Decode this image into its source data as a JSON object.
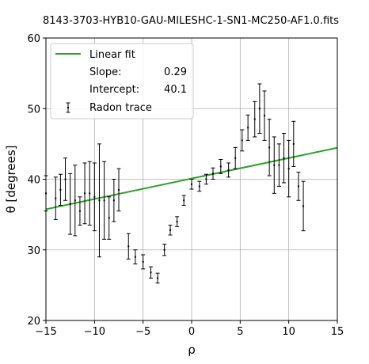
{
  "chart_data": {
    "type": "scatter",
    "title": "8143-3703-HYB10-GAU-MILESHC-1-SN1-MC250-AF1.0.fits",
    "xlabel": "ρ",
    "ylabel": "θ [degrees]",
    "xlim": [
      -15,
      15
    ],
    "ylim": [
      20,
      60
    ],
    "xticks": [
      -15,
      -10,
      -5,
      0,
      5,
      10,
      15
    ],
    "yticks": [
      20,
      30,
      40,
      50,
      60
    ],
    "xtick_labels": [
      "−15",
      "−10",
      "−5",
      "0",
      "5",
      "10",
      "15"
    ],
    "ytick_labels": [
      "20",
      "30",
      "40",
      "50",
      "60"
    ],
    "grid": true,
    "legend_position": "upper-left",
    "legend": {
      "fit_label": "Linear fit",
      "slope_label": "Slope:",
      "slope_value": "0.29",
      "intercept_label": "Intercept:",
      "intercept_value": "40.1",
      "trace_label": "Radon trace"
    },
    "fit": {
      "name": "Linear fit",
      "slope": 0.29,
      "intercept": 40.1,
      "color": "#2ca02c"
    },
    "series": [
      {
        "name": "Radon trace",
        "color": "#000000",
        "points": [
          {
            "x": -15,
            "y": 38.0,
            "err": 2.5
          },
          {
            "x": -14,
            "y": 37.3,
            "err": 3.0
          },
          {
            "x": -13.5,
            "y": 38.5,
            "err": 2.2
          },
          {
            "x": -13,
            "y": 40.0,
            "err": 3.0
          },
          {
            "x": -12.5,
            "y": 36.5,
            "err": 4.3
          },
          {
            "x": -12,
            "y": 37.0,
            "err": 5.0
          },
          {
            "x": -11.5,
            "y": 35.5,
            "err": 2.0
          },
          {
            "x": -11,
            "y": 38.0,
            "err": 4.3
          },
          {
            "x": -10.5,
            "y": 38.0,
            "err": 4.5
          },
          {
            "x": -10,
            "y": 37.5,
            "err": 4.8
          },
          {
            "x": -9.5,
            "y": 37.0,
            "err": 8.0
          },
          {
            "x": -9,
            "y": 37.0,
            "err": 5.5
          },
          {
            "x": -8.5,
            "y": 34.5,
            "err": 3.0
          },
          {
            "x": -8,
            "y": 37.0,
            "err": 3.0
          },
          {
            "x": -7.5,
            "y": 38.5,
            "err": 3.0
          },
          {
            "x": -6.5,
            "y": 30.5,
            "err": 1.8
          },
          {
            "x": -5.8,
            "y": 29.0,
            "err": 1.0
          },
          {
            "x": -5,
            "y": 28.3,
            "err": 1.0
          },
          {
            "x": -4.2,
            "y": 26.8,
            "err": 0.8
          },
          {
            "x": -3.5,
            "y": 26.0,
            "err": 0.7
          },
          {
            "x": -2.8,
            "y": 30.0,
            "err": 0.8
          },
          {
            "x": -2.2,
            "y": 32.8,
            "err": 0.7
          },
          {
            "x": -1.5,
            "y": 34.0,
            "err": 0.7
          },
          {
            "x": -0.8,
            "y": 37.0,
            "err": 0.7
          },
          {
            "x": 0,
            "y": 39.3,
            "err": 0.7
          },
          {
            "x": 0.8,
            "y": 39.0,
            "err": 0.7
          },
          {
            "x": 1.5,
            "y": 40.0,
            "err": 0.7
          },
          {
            "x": 2.2,
            "y": 40.8,
            "err": 0.8
          },
          {
            "x": 3,
            "y": 41.8,
            "err": 1.0
          },
          {
            "x": 3.8,
            "y": 41.3,
            "err": 1.0
          },
          {
            "x": 4.5,
            "y": 43.0,
            "err": 1.5
          },
          {
            "x": 5.2,
            "y": 45.5,
            "err": 1.5
          },
          {
            "x": 5.8,
            "y": 47.3,
            "err": 1.8
          },
          {
            "x": 6.5,
            "y": 48.5,
            "err": 2.5
          },
          {
            "x": 7,
            "y": 50.0,
            "err": 3.5
          },
          {
            "x": 7.5,
            "y": 49.0,
            "err": 3.5
          },
          {
            "x": 8,
            "y": 44.5,
            "err": 4.0
          },
          {
            "x": 8.5,
            "y": 42.0,
            "err": 4.0
          },
          {
            "x": 9,
            "y": 42.0,
            "err": 3.0
          },
          {
            "x": 9.5,
            "y": 43.0,
            "err": 3.5
          },
          {
            "x": 10,
            "y": 41.5,
            "err": 4.0
          },
          {
            "x": 10.5,
            "y": 45.0,
            "err": 3.2
          },
          {
            "x": 11,
            "y": 39.0,
            "err": 2.0
          },
          {
            "x": 11.5,
            "y": 36.2,
            "err": 3.5
          }
        ]
      }
    ]
  }
}
